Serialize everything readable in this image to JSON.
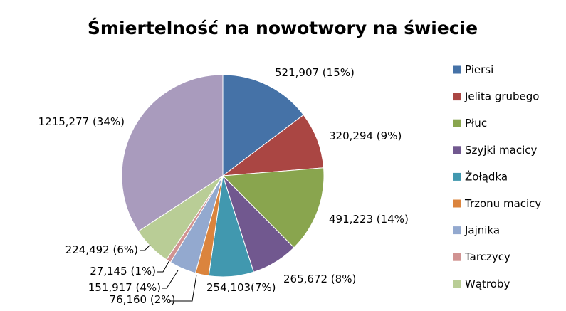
{
  "chart_data": {
    "type": "pie",
    "title": "Śmiertelność na nowotwory na świecie",
    "legend_position": "right",
    "slices": [
      {
        "name": "Piersi",
        "value": 521.907,
        "label": "521,907 (15%)",
        "color": "#4572A7"
      },
      {
        "name": "Jelita grubego",
        "value": 320.294,
        "label": "320,294 (9%)",
        "color": "#AA4643"
      },
      {
        "name": "Płuc",
        "value": 491.223,
        "label": "491,223 (14%)",
        "color": "#89A54E"
      },
      {
        "name": "Szyjki macicy",
        "value": 265.672,
        "label": "265,672 (8%)",
        "color": "#71588F"
      },
      {
        "name": "Żołądka",
        "value": 254.103,
        "label": "254,103(7%)",
        "color": "#4198AF"
      },
      {
        "name": "Trzonu macicy",
        "value": 76.16,
        "label": "76,160 (2%)",
        "color": "#DB843D"
      },
      {
        "name": "Jajnika",
        "value": 151.917,
        "label": "151,917 (4%)",
        "color": "#93A9CF"
      },
      {
        "name": "Tarczycy",
        "value": 27.145,
        "label": "27,145 (1%)",
        "color": "#D19392"
      },
      {
        "name": "Wątroby",
        "value": 224.492,
        "label": "224,492 (6%)",
        "color": "#B9CD96"
      },
      {
        "name": "",
        "value": 1215.277,
        "label": "1215,277 (34%)",
        "color": "#A99BBD"
      }
    ]
  }
}
